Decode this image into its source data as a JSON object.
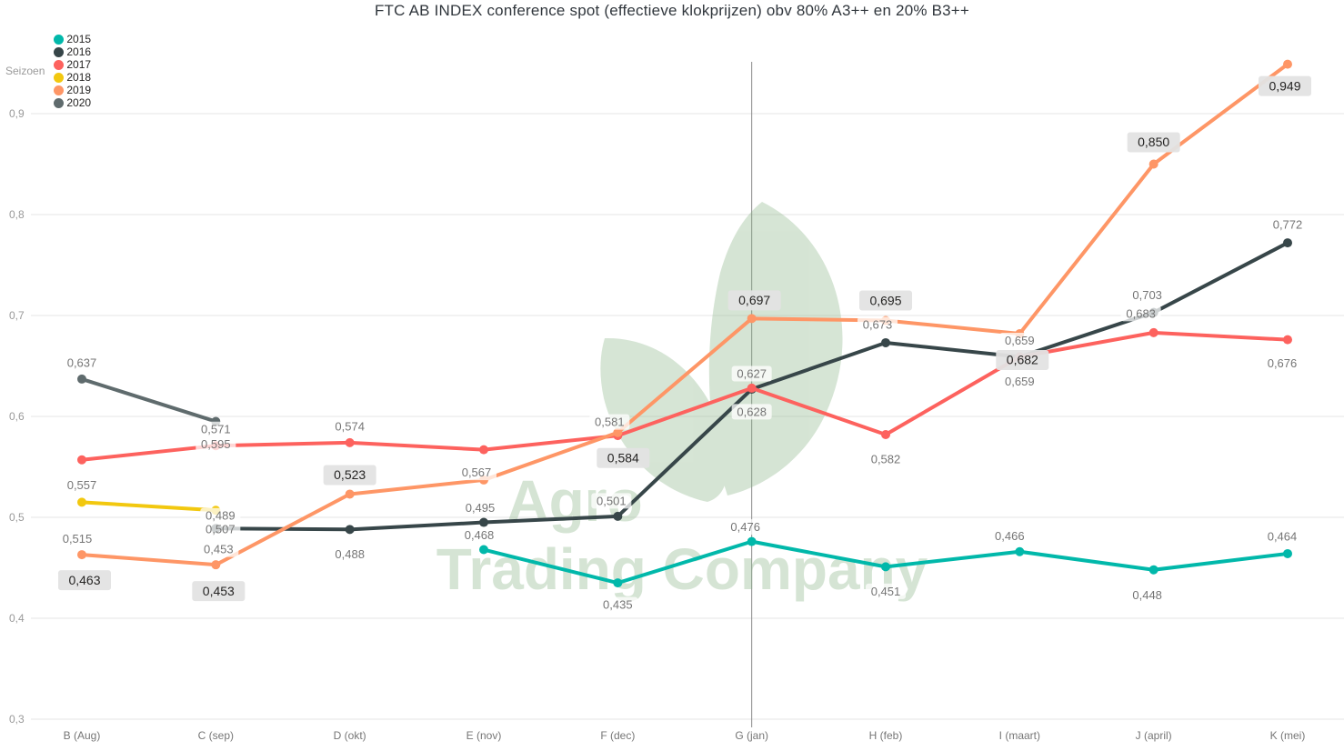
{
  "title": "FTC AB INDEX conference spot (effectieve klokprijzen) obv 80% A3++ en 20% B3++",
  "legend": {
    "label": "Seizoen",
    "items": [
      {
        "year": "2015",
        "color": "#01B8AA"
      },
      {
        "year": "2016",
        "color": "#374649"
      },
      {
        "year": "2017",
        "color": "#FD625E"
      },
      {
        "year": "2018",
        "color": "#F2C80F"
      },
      {
        "year": "2019",
        "color": "#FE9666"
      },
      {
        "year": "2020",
        "color": "#5F6B6D"
      }
    ]
  },
  "watermark": {
    "line1": "Agro",
    "line2": "Trading Company",
    "color": "#86b383"
  },
  "colors": {
    "grid": "#e6e6e6",
    "axis_text": "#9a9a9a",
    "x_text": "#767676",
    "label_text": "#757575",
    "boxed_text": "#252423",
    "boxed_bg": "#e3e3e3",
    "vline": "#8a8a8a"
  },
  "chart_data": {
    "type": "line",
    "categories": [
      "B (Aug)",
      "C (sep)",
      "D (okt)",
      "E (nov)",
      "F (dec)",
      "G (jan)",
      "H (feb)",
      "I (maart)",
      "J (april)",
      "K (mei)"
    ],
    "y_ticks": [
      {
        "label": "0,3",
        "v": 0.3
      },
      {
        "label": "0,4",
        "v": 0.4
      },
      {
        "label": "0,5",
        "v": 0.5
      },
      {
        "label": "0,6",
        "v": 0.6
      },
      {
        "label": "0,7",
        "v": 0.7
      },
      {
        "label": "0,8",
        "v": 0.8
      },
      {
        "label": "0,9",
        "v": 0.9
      }
    ],
    "y_range": [
      0.3,
      0.95
    ],
    "grid": true,
    "legend_position": "top-left",
    "reference_line_category": "G (jan)",
    "series": [
      {
        "name": "2015",
        "color": "#01B8AA",
        "points": [
          {
            "c": 3,
            "v": 0.468,
            "t": "0,468",
            "dx": -5,
            "dy": -16
          },
          {
            "c": 4,
            "v": 0.435,
            "t": "0,435",
            "dx": 0,
            "dy": 24
          },
          {
            "c": 5,
            "v": 0.476,
            "t": "0,476",
            "dx": -7,
            "dy": -16
          },
          {
            "c": 6,
            "v": 0.451,
            "t": "0,451",
            "dx": 0,
            "dy": 27
          },
          {
            "c": 7,
            "v": 0.466,
            "t": "0,466",
            "dx": -11,
            "dy": -17
          },
          {
            "c": 8,
            "v": 0.448,
            "t": "0,448",
            "dx": -7,
            "dy": 28
          },
          {
            "c": 9,
            "v": 0.464,
            "t": "0,464",
            "dx": -6,
            "dy": -19
          }
        ]
      },
      {
        "name": "2016",
        "color": "#374649",
        "points": [
          {
            "c": 1,
            "v": 0.489,
            "t": "0,489",
            "dx": 5,
            "dy": -14
          },
          {
            "c": 2,
            "v": 0.488,
            "t": "0,488",
            "dx": 0,
            "dy": 27
          },
          {
            "c": 3,
            "v": 0.495,
            "t": "0,495",
            "dx": -4,
            "dy": -16
          },
          {
            "c": 4,
            "v": 0.501,
            "t": "0,501",
            "dx": -7,
            "dy": -17
          },
          {
            "c": 5,
            "v": 0.627,
            "t": "0,627",
            "dx": 0,
            "dy": -17
          },
          {
            "c": 6,
            "v": 0.673,
            "t": "0,673",
            "dx": -9,
            "dy": -20
          },
          {
            "c": 7,
            "v": 0.659,
            "t": "0,659",
            "dx": 0,
            "dy": -18
          },
          {
            "c": 8,
            "v": 0.703,
            "t": "0,703",
            "dx": -7,
            "dy": -19
          },
          {
            "c": 9,
            "v": 0.772,
            "t": "0,772",
            "dx": 0,
            "dy": -20
          }
        ]
      },
      {
        "name": "2017",
        "color": "#FD625E",
        "points": [
          {
            "c": 0,
            "v": 0.557,
            "t": "0,557",
            "dx": 0,
            "dy": 28
          },
          {
            "c": 1,
            "v": 0.571,
            "t": "0,571",
            "dx": 0,
            "dy": -18
          },
          {
            "c": 2,
            "v": 0.574,
            "t": "0,574",
            "dx": 0,
            "dy": -18
          },
          {
            "c": 3,
            "v": 0.567,
            "t": "0,567",
            "dx": -8,
            "dy": 25
          },
          {
            "c": 4,
            "v": 0.581,
            "t": "0,581",
            "dx": -9,
            "dy": -15
          },
          {
            "c": 5,
            "v": 0.628,
            "t": "0,628",
            "dx": 0,
            "dy": 26
          },
          {
            "c": 6,
            "v": 0.582,
            "t": "0,582",
            "dx": 0,
            "dy": 27
          },
          {
            "c": 7,
            "v": 0.659,
            "t": "0,659",
            "dx": 0,
            "dy": 27
          },
          {
            "c": 8,
            "v": 0.683,
            "t": "0,683",
            "dx": -14,
            "dy": -21
          },
          {
            "c": 9,
            "v": 0.676,
            "t": "0,676",
            "dx": -6,
            "dy": 26
          }
        ]
      },
      {
        "name": "2018",
        "color": "#F2C80F",
        "points": [
          {
            "c": 0,
            "v": 0.515,
            "t": "0,515",
            "dx": -5,
            "dy": 40
          },
          {
            "c": 1,
            "v": 0.507,
            "t": "0,507",
            "dx": 5,
            "dy": 21
          }
        ]
      },
      {
        "name": "2019",
        "color": "#FE9666",
        "points": [
          {
            "c": 0,
            "v": 0.463,
            "t": "0,463",
            "dx": 3,
            "dy": 28,
            "boxed": true
          },
          {
            "c": 1,
            "v": 0.453,
            "t": "0,453",
            "dx": 3,
            "dy": 29,
            "boxed": true,
            "label2": {
              "t": "0,453",
              "dx": 3,
              "dy": -17
            }
          },
          {
            "c": 2,
            "v": 0.523,
            "t": "0,523",
            "dx": 0,
            "dy": -21,
            "boxed": true
          },
          {
            "c": 3,
            "v": 0.537,
            "t": null
          },
          {
            "c": 4,
            "v": 0.584,
            "t": "0,584",
            "dx": 6,
            "dy": 28,
            "boxed": true
          },
          {
            "c": 5,
            "v": 0.697,
            "t": "0,697",
            "dx": 3,
            "dy": -20,
            "boxed": true
          },
          {
            "c": 6,
            "v": 0.695,
            "t": "0,695",
            "dx": 0,
            "dy": -22,
            "boxed": true
          },
          {
            "c": 7,
            "v": 0.682,
            "t": "0,682",
            "dx": 3,
            "dy": 29,
            "boxed": true
          },
          {
            "c": 8,
            "v": 0.85,
            "t": "0,850",
            "dx": 0,
            "dy": -24,
            "boxed": true
          },
          {
            "c": 9,
            "v": 0.949,
            "t": "0,949",
            "dx": -3,
            "dy": 24,
            "boxed": true
          }
        ]
      },
      {
        "name": "2020",
        "color": "#5F6B6D",
        "points": [
          {
            "c": 0,
            "v": 0.637,
            "t": "0,637",
            "dx": 0,
            "dy": -18
          },
          {
            "c": 1,
            "v": 0.595,
            "t": "0,595",
            "dx": 0,
            "dy": 25
          }
        ]
      }
    ]
  }
}
